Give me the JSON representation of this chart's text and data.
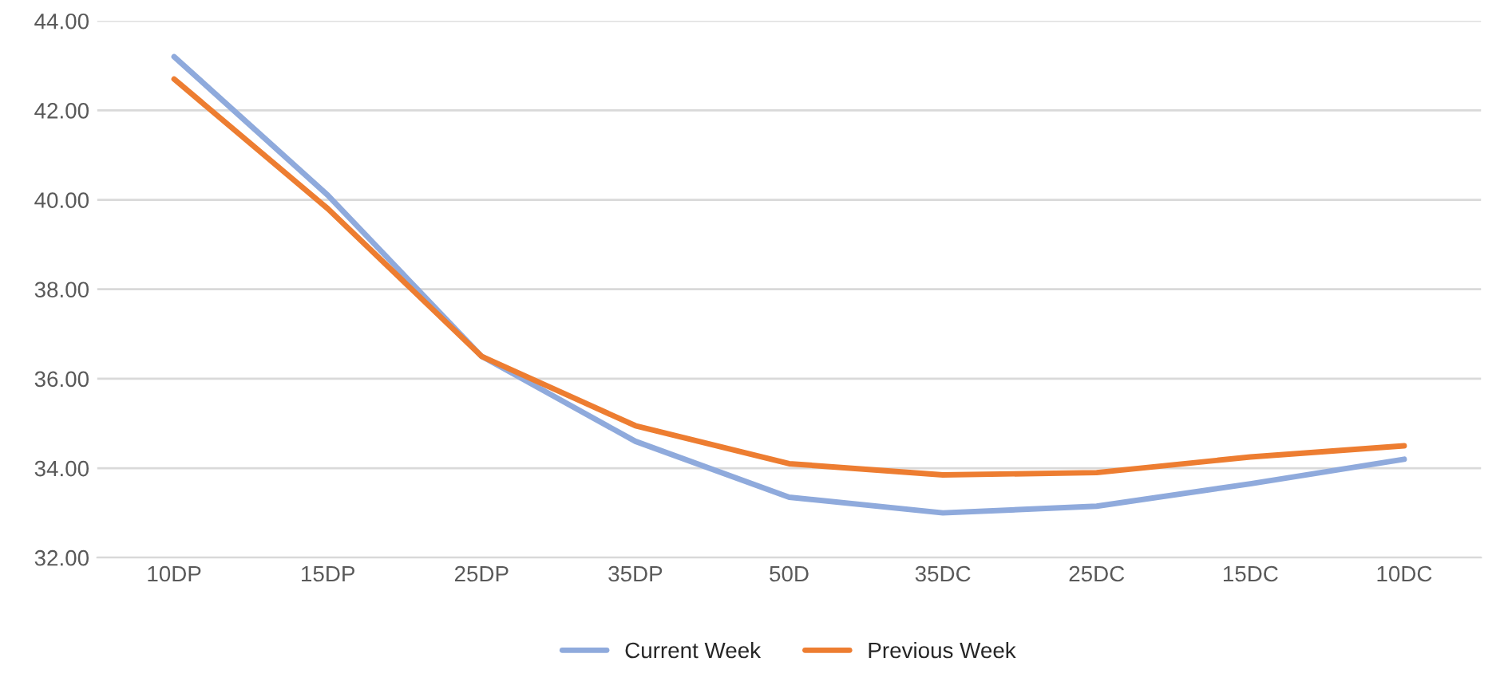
{
  "chart_data": {
    "type": "line",
    "categories": [
      "10DP",
      "15DP",
      "25DP",
      "35DP",
      "50D",
      "35DC",
      "25DC",
      "15DC",
      "10DC"
    ],
    "series": [
      {
        "name": "Current Week",
        "color": "#8faadc",
        "values": [
          43.2,
          40.1,
          36.5,
          34.6,
          33.35,
          33.0,
          33.15,
          33.65,
          34.2
        ]
      },
      {
        "name": "Previous Week",
        "color": "#ed7d31",
        "values": [
          42.7,
          39.8,
          36.5,
          34.95,
          34.1,
          33.85,
          33.9,
          34.25,
          34.5
        ]
      }
    ],
    "ylim": [
      32,
      44
    ],
    "yticks": [
      {
        "value": 32,
        "label": "32.00"
      },
      {
        "value": 34,
        "label": "34.00"
      },
      {
        "value": 36,
        "label": "36.00"
      },
      {
        "value": 38,
        "label": "38.00"
      },
      {
        "value": 40,
        "label": "40.00"
      },
      {
        "value": 42,
        "label": "42.00"
      },
      {
        "value": 44,
        "label": "44.00"
      }
    ],
    "grid": "y",
    "legend": "bottom",
    "marker": "none",
    "line_style": "solid"
  }
}
